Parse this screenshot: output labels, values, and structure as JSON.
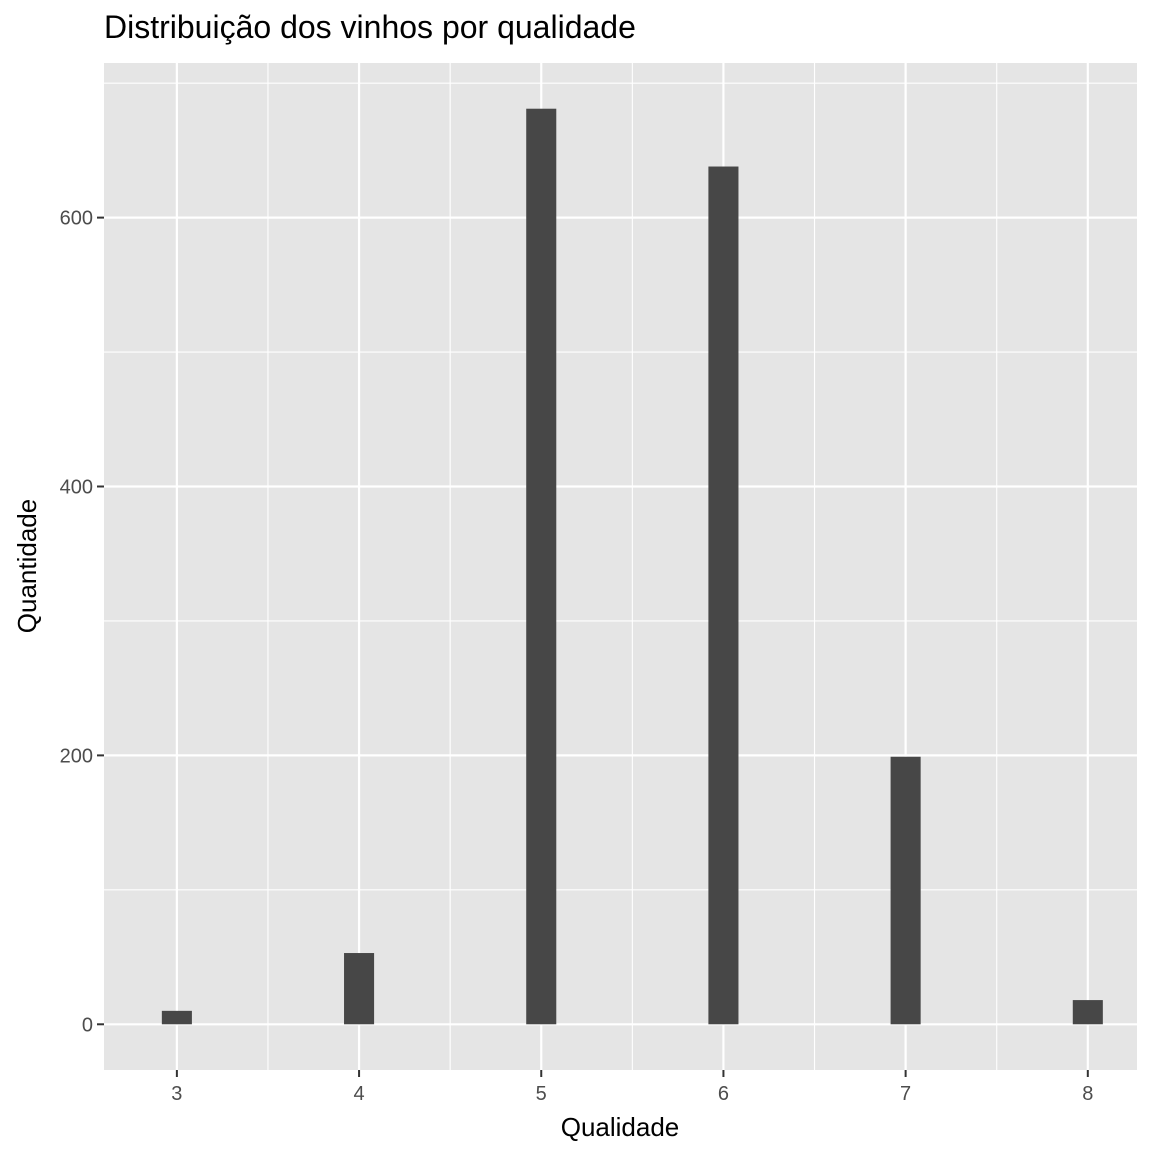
{
  "chart_data": {
    "type": "bar",
    "title": "Distribuição dos vinhos por qualidade",
    "xlabel": "Qualidade",
    "ylabel": "Quantidade",
    "x": [
      3,
      4,
      5,
      6,
      7,
      8
    ],
    "values": [
      10,
      53,
      681,
      638,
      199,
      18
    ],
    "bar_width": 0.165,
    "xlim": [
      2.6,
      8.27
    ],
    "ylim": [
      -34,
      715
    ],
    "x_ticks": [
      3,
      4,
      5,
      6,
      7,
      8
    ],
    "y_ticks": [
      0,
      200,
      400,
      600
    ],
    "grid": true,
    "legend": "none"
  },
  "colors": {
    "panel_background": "#e5e5e5",
    "gridline": "#ffffff",
    "bar_fill": "#474747",
    "tick_mark": "#333333"
  }
}
